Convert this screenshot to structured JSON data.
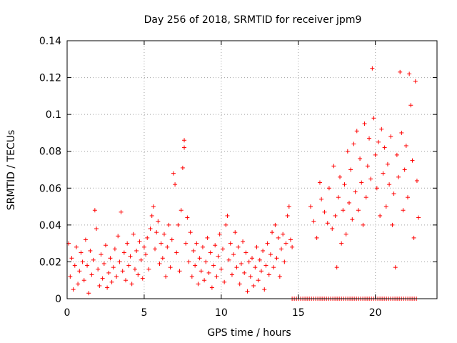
{
  "chart_data": {
    "type": "scatter",
    "title": "Day 256 of 2018, SRMTID for receiver jpm9",
    "xlabel": "GPS time / hours",
    "ylabel": "SRMTID / TECUs",
    "xlim": [
      0,
      24
    ],
    "ylim": [
      0,
      0.14
    ],
    "xticks": [
      0,
      5,
      10,
      15,
      20
    ],
    "xtick_labels": [
      "0",
      "5",
      "10",
      "15",
      "20"
    ],
    "yticks": [
      0,
      0.02,
      0.04,
      0.06,
      0.08,
      0.1,
      0.12,
      0.14
    ],
    "ytick_labels": [
      "0",
      "0.02",
      "0.04",
      "0.06",
      "0.08",
      "0.1",
      "0.12",
      "0.14"
    ],
    "grid": true,
    "marker": "plus",
    "series": [
      {
        "name": "SRMTID",
        "color": "#ff0000",
        "points": [
          [
            0.1,
            0.03
          ],
          [
            0.2,
            0.012
          ],
          [
            0.3,
            0.022
          ],
          [
            0.4,
            0.005
          ],
          [
            0.5,
            0.018
          ],
          [
            0.6,
            0.028
          ],
          [
            0.7,
            0.008
          ],
          [
            0.8,
            0.015
          ],
          [
            0.9,
            0.025
          ],
          [
            1.0,
            0.02
          ],
          [
            1.1,
            0.01
          ],
          [
            1.2,
            0.032
          ],
          [
            1.3,
            0.018
          ],
          [
            1.4,
            0.003
          ],
          [
            1.5,
            0.026
          ],
          [
            1.6,
            0.013
          ],
          [
            1.7,
            0.021
          ],
          [
            1.8,
            0.048
          ],
          [
            1.9,
            0.038
          ],
          [
            2.0,
            0.016
          ],
          [
            2.1,
            0.007
          ],
          [
            2.2,
            0.024
          ],
          [
            2.3,
            0.011
          ],
          [
            2.4,
            0.019
          ],
          [
            2.5,
            0.029
          ],
          [
            2.6,
            0.006
          ],
          [
            2.7,
            0.014
          ],
          [
            2.8,
            0.022
          ],
          [
            2.9,
            0.009
          ],
          [
            3.0,
            0.017
          ],
          [
            3.1,
            0.027
          ],
          [
            3.2,
            0.012
          ],
          [
            3.3,
            0.034
          ],
          [
            3.4,
            0.02
          ],
          [
            3.5,
            0.047
          ],
          [
            3.6,
            0.015
          ],
          [
            3.7,
            0.025
          ],
          [
            3.8,
            0.01
          ],
          [
            3.9,
            0.03
          ],
          [
            4.0,
            0.018
          ],
          [
            4.1,
            0.023
          ],
          [
            4.2,
            0.008
          ],
          [
            4.3,
            0.035
          ],
          [
            4.4,
            0.016
          ],
          [
            4.5,
            0.026
          ],
          [
            4.6,
            0.013
          ],
          [
            4.7,
            0.031
          ],
          [
            4.8,
            0.021
          ],
          [
            4.9,
            0.011
          ],
          [
            5.0,
            0.028
          ],
          [
            5.1,
            0.024
          ],
          [
            5.2,
            0.033
          ],
          [
            5.3,
            0.016
          ],
          [
            5.4,
            0.038
          ],
          [
            5.5,
            0.045
          ],
          [
            5.6,
            0.05
          ],
          [
            5.7,
            0.027
          ],
          [
            5.8,
            0.036
          ],
          [
            5.9,
            0.042
          ],
          [
            6.0,
            0.019
          ],
          [
            6.1,
            0.03
          ],
          [
            6.2,
            0.022
          ],
          [
            6.3,
            0.035
          ],
          [
            6.4,
            0.012
          ],
          [
            6.5,
            0.028
          ],
          [
            6.6,
            0.04
          ],
          [
            6.7,
            0.017
          ],
          [
            6.8,
            0.032
          ],
          [
            6.9,
            0.068
          ],
          [
            7.0,
            0.062
          ],
          [
            7.1,
            0.025
          ],
          [
            7.2,
            0.04
          ],
          [
            7.3,
            0.015
          ],
          [
            7.4,
            0.048
          ],
          [
            7.5,
            0.071
          ],
          [
            7.6,
            0.086
          ],
          [
            7.6,
            0.082
          ],
          [
            7.7,
            0.03
          ],
          [
            7.8,
            0.044
          ],
          [
            7.9,
            0.02
          ],
          [
            8.0,
            0.036
          ],
          [
            8.1,
            0.012
          ],
          [
            8.2,
            0.026
          ],
          [
            8.3,
            0.018
          ],
          [
            8.4,
            0.03
          ],
          [
            8.5,
            0.008
          ],
          [
            8.6,
            0.022
          ],
          [
            8.7,
            0.015
          ],
          [
            8.8,
            0.028
          ],
          [
            8.9,
            0.01
          ],
          [
            9.0,
            0.02
          ],
          [
            9.1,
            0.033
          ],
          [
            9.2,
            0.014
          ],
          [
            9.3,
            0.025
          ],
          [
            9.4,
            0.006
          ],
          [
            9.5,
            0.018
          ],
          [
            9.6,
            0.029
          ],
          [
            9.7,
            0.012
          ],
          [
            9.8,
            0.023
          ],
          [
            9.9,
            0.035
          ],
          [
            10.0,
            0.016
          ],
          [
            10.1,
            0.027
          ],
          [
            10.2,
            0.009
          ],
          [
            10.3,
            0.04
          ],
          [
            10.4,
            0.045
          ],
          [
            10.5,
            0.021
          ],
          [
            10.6,
            0.03
          ],
          [
            10.7,
            0.013
          ],
          [
            10.8,
            0.024
          ],
          [
            10.9,
            0.036
          ],
          [
            11.0,
            0.017
          ],
          [
            11.1,
            0.028
          ],
          [
            11.2,
            0.008
          ],
          [
            11.3,
            0.019
          ],
          [
            11.4,
            0.031
          ],
          [
            11.5,
            0.014
          ],
          [
            11.6,
            0.025
          ],
          [
            11.7,
            0.004
          ],
          [
            11.8,
            0.02
          ],
          [
            11.9,
            0.012
          ],
          [
            12.0,
            0.022
          ],
          [
            12.1,
            0.007
          ],
          [
            12.2,
            0.017
          ],
          [
            12.3,
            0.028
          ],
          [
            12.4,
            0.01
          ],
          [
            12.5,
            0.021
          ],
          [
            12.6,
            0.015
          ],
          [
            12.7,
            0.026
          ],
          [
            12.8,
            0.005
          ],
          [
            12.9,
            0.018
          ],
          [
            13.0,
            0.03
          ],
          [
            13.1,
            0.013
          ],
          [
            13.2,
            0.024
          ],
          [
            13.3,
            0.036
          ],
          [
            13.4,
            0.017
          ],
          [
            13.5,
            0.04
          ],
          [
            13.6,
            0.022
          ],
          [
            13.7,
            0.033
          ],
          [
            13.8,
            0.012
          ],
          [
            13.9,
            0.027
          ],
          [
            14.0,
            0.035
          ],
          [
            14.1,
            0.02
          ],
          [
            14.2,
            0.03
          ],
          [
            14.3,
            0.045
          ],
          [
            14.4,
            0.05
          ],
          [
            14.5,
            0.032
          ],
          [
            14.6,
            0.028
          ],
          [
            15.8,
            0.05
          ],
          [
            16.0,
            0.042
          ],
          [
            16.2,
            0.033
          ],
          [
            16.4,
            0.063
          ],
          [
            16.5,
            0.054
          ],
          [
            16.7,
            0.047
          ],
          [
            16.9,
            0.041
          ],
          [
            17.0,
            0.06
          ],
          [
            17.2,
            0.038
          ],
          [
            17.3,
            0.072
          ],
          [
            17.4,
            0.045
          ],
          [
            17.5,
            0.017
          ],
          [
            17.6,
            0.055
          ],
          [
            17.7,
            0.066
          ],
          [
            17.8,
            0.03
          ],
          [
            17.9,
            0.048
          ],
          [
            18.0,
            0.062
          ],
          [
            18.1,
            0.035
          ],
          [
            18.2,
            0.08
          ],
          [
            18.3,
            0.052
          ],
          [
            18.4,
            0.07
          ],
          [
            18.5,
            0.043
          ],
          [
            18.6,
            0.084
          ],
          [
            18.7,
            0.058
          ],
          [
            18.8,
            0.091
          ],
          [
            18.9,
            0.048
          ],
          [
            19.0,
            0.076
          ],
          [
            19.1,
            0.063
          ],
          [
            19.2,
            0.04
          ],
          [
            19.3,
            0.095
          ],
          [
            19.4,
            0.055
          ],
          [
            19.5,
            0.072
          ],
          [
            19.6,
            0.087
          ],
          [
            19.7,
            0.065
          ],
          [
            19.8,
            0.125
          ],
          [
            19.9,
            0.098
          ],
          [
            20.0,
            0.078
          ],
          [
            20.1,
            0.06
          ],
          [
            20.2,
            0.085
          ],
          [
            20.3,
            0.045
          ],
          [
            20.4,
            0.092
          ],
          [
            20.5,
            0.068
          ],
          [
            20.6,
            0.082
          ],
          [
            20.7,
            0.05
          ],
          [
            20.8,
            0.073
          ],
          [
            20.9,
            0.062
          ],
          [
            21.0,
            0.088
          ],
          [
            21.1,
            0.04
          ],
          [
            21.2,
            0.057
          ],
          [
            21.3,
            0.017
          ],
          [
            21.4,
            0.078
          ],
          [
            21.5,
            0.066
          ],
          [
            21.6,
            0.123
          ],
          [
            21.7,
            0.09
          ],
          [
            21.8,
            0.048
          ],
          [
            21.9,
            0.07
          ],
          [
            22.0,
            0.083
          ],
          [
            22.1,
            0.055
          ],
          [
            22.2,
            0.122
          ],
          [
            22.3,
            0.105
          ],
          [
            22.4,
            0.075
          ],
          [
            22.5,
            0.033
          ],
          [
            22.6,
            0.118
          ],
          [
            22.7,
            0.064
          ],
          [
            22.8,
            0.044
          ]
        ],
        "zero_band": [
          14.6,
          22.8
        ]
      }
    ]
  }
}
